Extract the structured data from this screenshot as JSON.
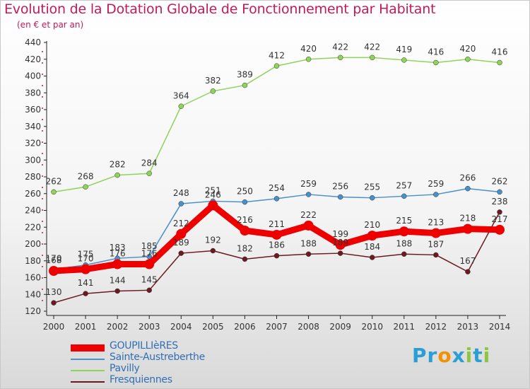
{
  "title": "Evolution de la Dotation Globale de Fonctionnement par Habitant",
  "subtitle": "(en € et par an)",
  "brand": {
    "letters": [
      "P",
      "r",
      "o",
      "x",
      "i",
      "t",
      "i"
    ],
    "colors": [
      "#2a9fd6",
      "#2a9fd6",
      "#f29200",
      "#2a9fd6",
      "#8dc63f",
      "#2a9fd6",
      "#8dc63f"
    ]
  },
  "chart_data": {
    "type": "line",
    "x": [
      "2000",
      "2001",
      "2002",
      "2003",
      "2004",
      "2005",
      "2006",
      "2007",
      "2008",
      "2009",
      "2010",
      "2011",
      "2012",
      "2013",
      "2014"
    ],
    "ylim": [
      120,
      440
    ],
    "yticks": [
      120,
      140,
      160,
      180,
      200,
      220,
      240,
      260,
      280,
      300,
      320,
      340,
      360,
      380,
      400,
      420,
      440
    ],
    "grid": false,
    "legend_position": "bottom-left",
    "series": [
      {
        "name": "Fresquiennes",
        "color": "#6b1a22",
        "values": [
          130,
          141,
          144,
          145,
          189,
          192,
          182,
          186,
          188,
          189,
          184,
          188,
          187,
          167,
          238
        ],
        "labels": [
          "130",
          "141",
          "144",
          "145",
          "189",
          "192",
          "182",
          "186",
          "188",
          "189",
          "184",
          "188",
          "187",
          "167",
          "238"
        ]
      },
      {
        "name": "Pavilly",
        "color": "#8fd35a",
        "values": [
          262,
          268,
          282,
          284,
          364,
          382,
          389,
          412,
          420,
          422,
          422,
          419,
          416,
          420,
          416
        ],
        "labels": [
          "262",
          "268",
          "282",
          "284",
          "364",
          "382",
          "389",
          "412",
          "420",
          "422",
          "422",
          "419",
          "416",
          "420",
          "416"
        ]
      },
      {
        "name": "Sainte-Austreberthe",
        "color": "#4a90c8",
        "values": [
          170,
          175,
          183,
          185,
          248,
          251,
          250,
          254,
          259,
          256,
          255,
          257,
          259,
          266,
          262
        ],
        "labels": [
          "170",
          "175",
          "183",
          "185",
          "248",
          "251",
          "250",
          "254",
          "259",
          "256",
          "255",
          "257",
          "259",
          "266",
          "262"
        ]
      },
      {
        "name": "GOUPILLIèRES",
        "color": "#ee0000",
        "values": [
          168,
          170,
          176,
          176,
          212,
          246,
          216,
          211,
          222,
          199,
          210,
          215,
          213,
          218,
          217
        ],
        "labels": [
          "168",
          "170",
          "176",
          "176",
          "212",
          "246",
          "216",
          "211",
          "222",
          "199",
          "210",
          "215",
          "213",
          "218",
          "217"
        ]
      }
    ],
    "legend": [
      "GOUPILLIèRES",
      "Sainte-Austreberthe",
      "Pavilly",
      "Fresquiennes"
    ]
  }
}
